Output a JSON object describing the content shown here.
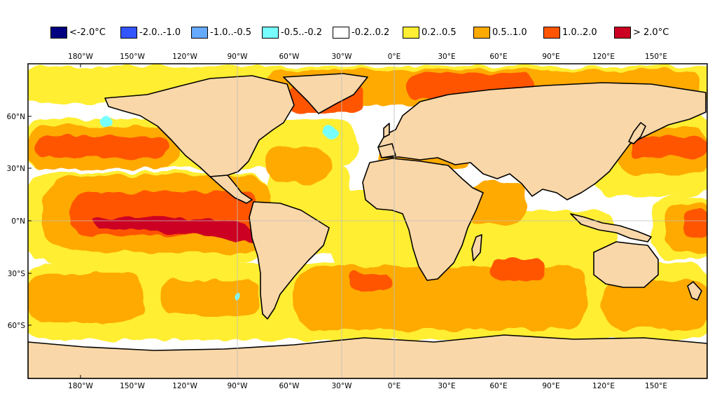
{
  "legend": [
    {
      "label": "<-2.0°C",
      "color": "#000080"
    },
    {
      "label": "-2.0..-1.0",
      "color": "#3355ff"
    },
    {
      "label": "-1.0..-0.5",
      "color": "#66aaff"
    },
    {
      "label": "-0.5..-0.2",
      "color": "#77ffff"
    },
    {
      "label": "-0.2..0.2",
      "color": "#ffffff"
    },
    {
      "label": "0.2..0.5",
      "color": "#ffee33"
    },
    {
      "label": "0.5..1.0",
      "color": "#ffaa00"
    },
    {
      "label": "1.0..2.0",
      "color": "#ff5500"
    },
    {
      "label": "> 2.0°C",
      "color": "#cc0022"
    }
  ],
  "x_ticks": [
    "180°W",
    "150°W",
    "120°W",
    "90°W",
    "60°W",
    "30°W",
    "0°E",
    "30°E",
    "60°E",
    "90°E",
    "120°E",
    "150°E"
  ],
  "y_ticks": [
    "60°N",
    "30°N",
    "0°N",
    "30°S",
    "60°S"
  ],
  "colors": {
    "land": "#fad7a8",
    "coast": "#000000",
    "border": "#9a9a9a"
  }
}
